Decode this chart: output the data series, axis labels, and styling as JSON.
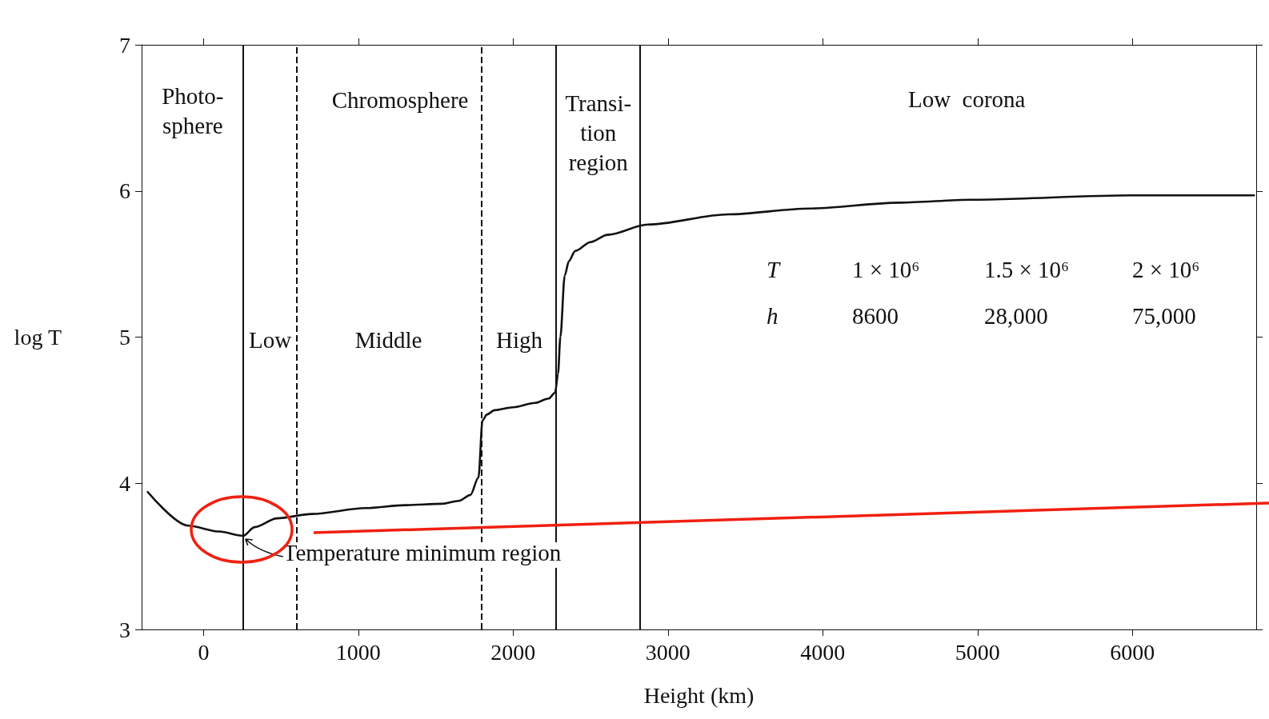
{
  "chart_data": {
    "type": "line",
    "xlabel": "Height (km)",
    "ylabel": "log T",
    "x": [
      -360,
      -99,
      100,
      255,
      330,
      474,
      700,
      1047,
      1300,
      1542,
      1650,
      1724,
      1776,
      1802,
      1830,
      1880,
      2000,
      2141,
      2230,
      2271,
      2290,
      2305,
      2333,
      2360,
      2401,
      2500,
      2609,
      2870,
      3391,
      3911,
      4500,
      4953,
      5995,
      6786
    ],
    "series": [
      {
        "color": "#111111",
        "values": [
          3.94,
          3.71,
          3.67,
          3.64,
          3.7,
          3.76,
          3.79,
          3.83,
          3.85,
          3.86,
          3.88,
          3.92,
          4.04,
          4.43,
          4.47,
          4.5,
          4.52,
          4.55,
          4.58,
          4.62,
          4.75,
          5.0,
          5.42,
          5.52,
          5.59,
          5.65,
          5.7,
          5.77,
          5.84,
          5.88,
          5.92,
          5.94,
          5.97,
          5.97
        ]
      }
    ],
    "xlim": [
      -400,
      6800
    ],
    "xticks": [
      0,
      1000,
      2000,
      3000,
      4000,
      5000,
      6000
    ],
    "ylim": [
      3,
      7
    ],
    "yticks": [
      3,
      4,
      5,
      6,
      7
    ],
    "marker": "none",
    "line_style": "solid",
    "grid": false,
    "ref_lines": [
      {
        "axis": "x",
        "value": 255,
        "line_style": "solid"
      },
      {
        "axis": "x",
        "value": 2276,
        "line_style": "solid"
      },
      {
        "axis": "x",
        "value": 2818,
        "line_style": "solid"
      },
      {
        "axis": "x",
        "value": 599,
        "line_style": "dashed"
      },
      {
        "axis": "x",
        "value": 1797,
        "line_style": "dashed"
      }
    ],
    "annotations": [
      {
        "text": "Temperature minimum region",
        "x": 255,
        "y": 3.64
      },
      "Photo-\nsphere",
      "Chromosphere",
      "Transi-\ntion\nregion",
      "Low  corona",
      "Low",
      "Middle",
      "High",
      "T",
      "1 × 10⁶",
      "1.5 × 10⁶",
      "2 × 10⁶",
      "h",
      "8600",
      "28,000",
      "75,000"
    ]
  }
}
